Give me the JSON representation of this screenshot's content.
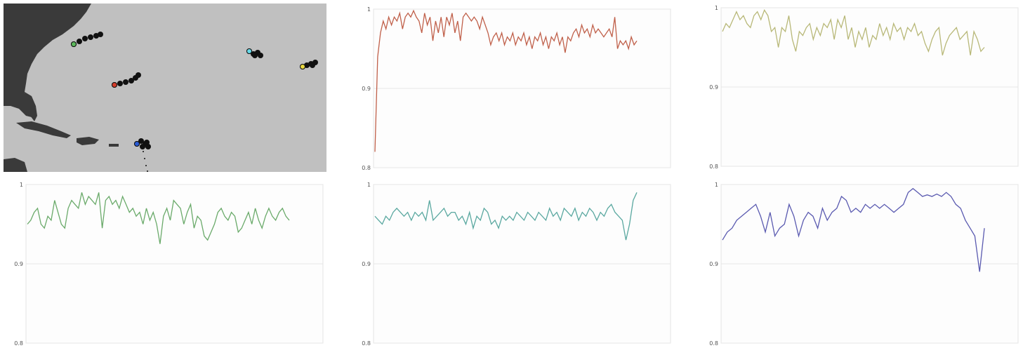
{
  "map": {
    "land_color": "#3a3a3a",
    "sea_color": "#c0c0c0",
    "tracks": [
      {
        "name": "green",
        "color": "#5cb85c"
      },
      {
        "name": "red",
        "color": "#d43c2a"
      },
      {
        "name": "blue",
        "color": "#2a5bd4"
      },
      {
        "name": "cyan",
        "color": "#66d9e8"
      },
      {
        "name": "yellow",
        "color": "#e8d840"
      }
    ]
  },
  "chart_data": [
    {
      "type": "line",
      "color": "#c0604a",
      "ylim": [
        0.8,
        1
      ],
      "yticks": [
        "1",
        "0.9",
        "0.8"
      ],
      "grid": true,
      "values": [
        0.82,
        0.94,
        0.97,
        0.985,
        0.975,
        0.99,
        0.98,
        0.99,
        0.985,
        0.995,
        0.975,
        0.99,
        0.995,
        0.99,
        0.998,
        0.99,
        0.985,
        0.97,
        0.995,
        0.98,
        0.99,
        0.96,
        0.985,
        0.97,
        0.99,
        0.965,
        0.99,
        0.98,
        0.995,
        0.97,
        0.985,
        0.96,
        0.99,
        0.995,
        0.99,
        0.985,
        0.99,
        0.985,
        0.975,
        0.99,
        0.98,
        0.97,
        0.955,
        0.965,
        0.97,
        0.96,
        0.97,
        0.955,
        0.965,
        0.96,
        0.97,
        0.955,
        0.965,
        0.96,
        0.97,
        0.955,
        0.965,
        0.95,
        0.965,
        0.96,
        0.97,
        0.955,
        0.965,
        0.95,
        0.965,
        0.96,
        0.97,
        0.955,
        0.965,
        0.945,
        0.965,
        0.96,
        0.97,
        0.975,
        0.965,
        0.98,
        0.97,
        0.975,
        0.965,
        0.98,
        0.97,
        0.975,
        0.97,
        0.965,
        0.97,
        0.975,
        0.965,
        0.99,
        0.95,
        0.96,
        0.955,
        0.96,
        0.95,
        0.965,
        0.955,
        0.96
      ]
    },
    {
      "type": "line",
      "color": "#b8b878",
      "ylim": [
        0.8,
        1
      ],
      "yticks": [
        "1",
        "0.9",
        "0.8"
      ],
      "grid": true,
      "values": [
        0.97,
        0.98,
        0.975,
        0.985,
        0.995,
        0.985,
        0.99,
        0.98,
        0.975,
        0.99,
        0.995,
        0.985,
        0.997,
        0.99,
        0.97,
        0.975,
        0.95,
        0.975,
        0.97,
        0.99,
        0.96,
        0.945,
        0.97,
        0.965,
        0.975,
        0.98,
        0.96,
        0.975,
        0.965,
        0.98,
        0.975,
        0.985,
        0.96,
        0.985,
        0.975,
        0.99,
        0.96,
        0.975,
        0.95,
        0.97,
        0.96,
        0.975,
        0.95,
        0.965,
        0.96,
        0.98,
        0.965,
        0.975,
        0.96,
        0.98,
        0.97,
        0.975,
        0.96,
        0.975,
        0.97,
        0.98,
        0.965,
        0.97,
        0.955,
        0.945,
        0.96,
        0.97,
        0.975,
        0.94,
        0.955,
        0.965,
        0.97,
        0.975,
        0.96,
        0.965,
        0.97,
        0.94,
        0.97,
        0.96,
        0.945,
        0.95
      ]
    },
    {
      "type": "line",
      "color": "#6aaa6a",
      "ylim": [
        0.8,
        1
      ],
      "yticks": [
        "1",
        "0.9",
        "0.8"
      ],
      "grid": true,
      "values": [
        0.95,
        0.955,
        0.965,
        0.97,
        0.95,
        0.945,
        0.96,
        0.955,
        0.98,
        0.965,
        0.95,
        0.945,
        0.97,
        0.98,
        0.975,
        0.97,
        0.99,
        0.975,
        0.985,
        0.98,
        0.975,
        0.99,
        0.945,
        0.98,
        0.985,
        0.975,
        0.98,
        0.97,
        0.985,
        0.975,
        0.965,
        0.97,
        0.96,
        0.965,
        0.95,
        0.97,
        0.955,
        0.965,
        0.95,
        0.925,
        0.96,
        0.97,
        0.955,
        0.98,
        0.975,
        0.97,
        0.95,
        0.965,
        0.975,
        0.945,
        0.96,
        0.955,
        0.935,
        0.93,
        0.94,
        0.95,
        0.965,
        0.97,
        0.96,
        0.955,
        0.965,
        0.96,
        0.94,
        0.945,
        0.955,
        0.965,
        0.95,
        0.97,
        0.955,
        0.945,
        0.96,
        0.97,
        0.96,
        0.955,
        0.965,
        0.97,
        0.96,
        0.955
      ]
    },
    {
      "type": "line",
      "color": "#5aa8a0",
      "ylim": [
        0.8,
        1
      ],
      "yticks": [
        "1",
        "0.9",
        "0.8"
      ],
      "grid": true,
      "values": [
        0.96,
        0.955,
        0.95,
        0.96,
        0.955,
        0.965,
        0.97,
        0.965,
        0.96,
        0.965,
        0.955,
        0.965,
        0.96,
        0.965,
        0.955,
        0.98,
        0.955,
        0.96,
        0.965,
        0.97,
        0.96,
        0.965,
        0.965,
        0.955,
        0.96,
        0.95,
        0.965,
        0.945,
        0.96,
        0.955,
        0.97,
        0.965,
        0.95,
        0.955,
        0.945,
        0.96,
        0.955,
        0.96,
        0.955,
        0.965,
        0.96,
        0.955,
        0.965,
        0.96,
        0.955,
        0.965,
        0.96,
        0.955,
        0.97,
        0.96,
        0.965,
        0.955,
        0.97,
        0.965,
        0.96,
        0.97,
        0.955,
        0.965,
        0.96,
        0.97,
        0.965,
        0.955,
        0.965,
        0.96,
        0.97,
        0.975,
        0.965,
        0.96,
        0.955,
        0.93,
        0.95,
        0.98,
        0.99
      ]
    },
    {
      "type": "line",
      "color": "#5a5ab0",
      "ylim": [
        0.8,
        1
      ],
      "yticks": [
        "1",
        "0.9",
        "0.8"
      ],
      "grid": true,
      "values": [
        0.93,
        0.94,
        0.945,
        0.955,
        0.96,
        0.965,
        0.97,
        0.975,
        0.96,
        0.94,
        0.965,
        0.935,
        0.945,
        0.95,
        0.975,
        0.96,
        0.935,
        0.955,
        0.965,
        0.96,
        0.945,
        0.97,
        0.955,
        0.965,
        0.97,
        0.985,
        0.98,
        0.965,
        0.97,
        0.965,
        0.975,
        0.97,
        0.975,
        0.97,
        0.975,
        0.97,
        0.965,
        0.97,
        0.975,
        0.99,
        0.995,
        0.99,
        0.985,
        0.987,
        0.985,
        0.988,
        0.985,
        0.99,
        0.985,
        0.975,
        0.97,
        0.955,
        0.945,
        0.935,
        0.89,
        0.945
      ]
    }
  ]
}
